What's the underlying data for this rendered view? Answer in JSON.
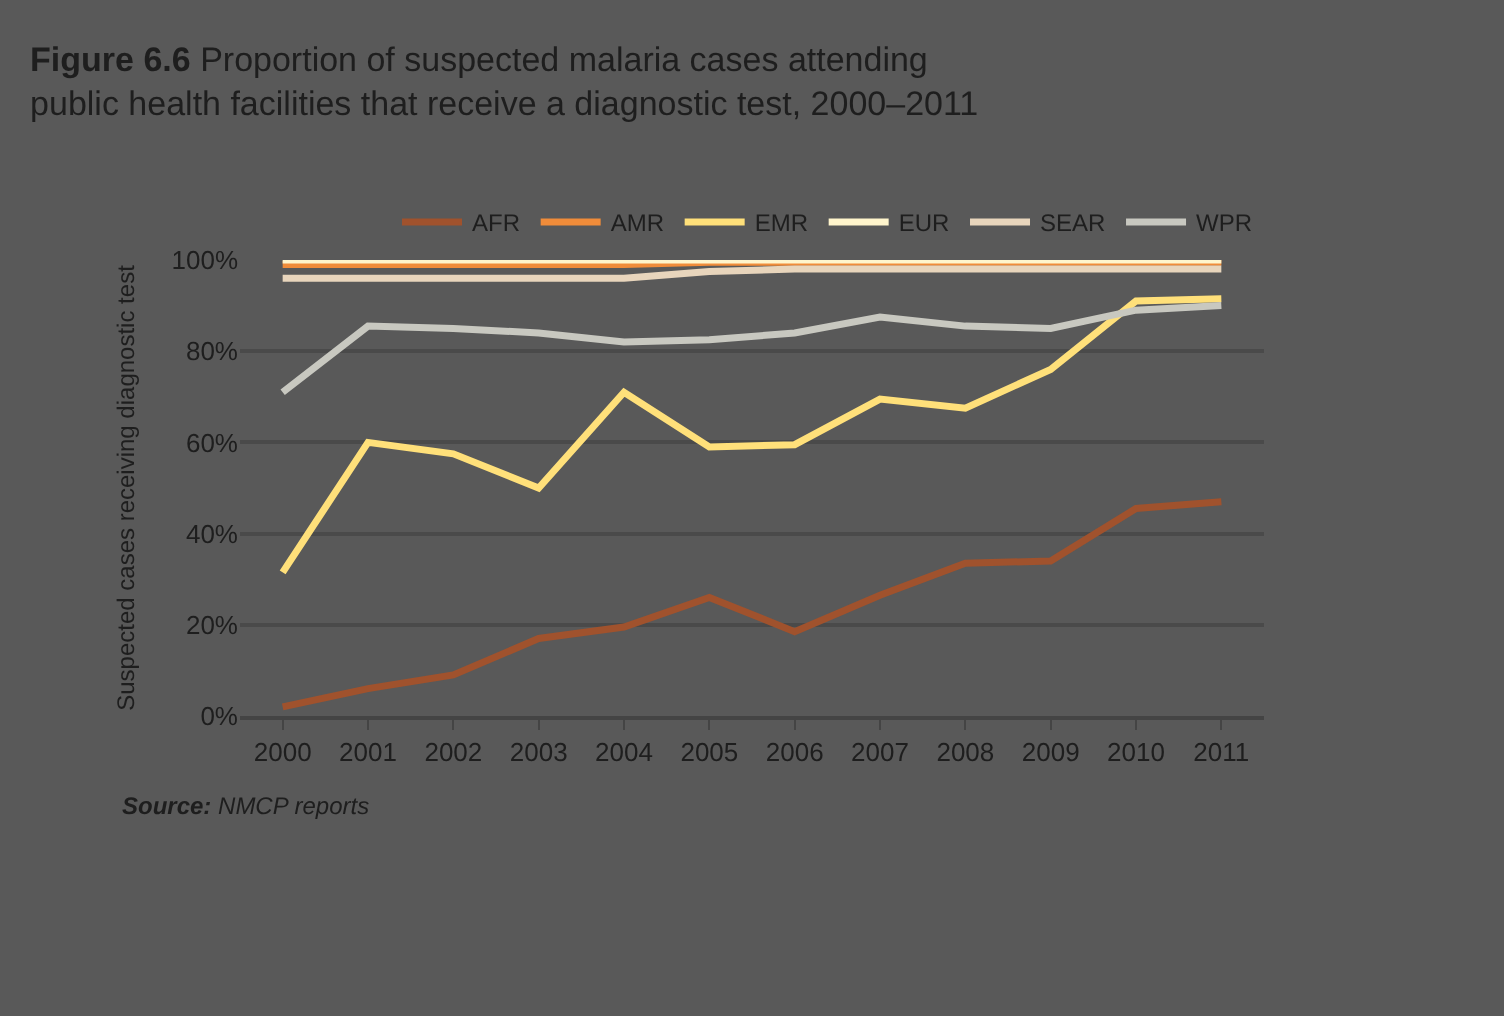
{
  "chart_data": {
    "type": "line",
    "title": "Figure 6.6 Proportion of suspected malaria cases attending public health facilities that receive a diagnostic test, 2000–2011",
    "ylabel": "Suspected cases receiving diagnostic test",
    "categories": [
      "2000",
      "2001",
      "2002",
      "2003",
      "2004",
      "2005",
      "2006",
      "2007",
      "2008",
      "2009",
      "2010",
      "2011"
    ],
    "series": [
      {
        "name": "AFR",
        "color": "#a0522d",
        "values": [
          2,
          6,
          9,
          17,
          19.5,
          26,
          18.5,
          26.5,
          33.5,
          34,
          45.5,
          47
        ]
      },
      {
        "name": "AMR",
        "color": "#f08c3a",
        "values": [
          99,
          99,
          99,
          99,
          99,
          99.5,
          99.5,
          99.5,
          99.5,
          99.5,
          99.5,
          99.5
        ]
      },
      {
        "name": "EMR",
        "color": "#ffe07a",
        "values": [
          31.5,
          60,
          57.5,
          50,
          71,
          59,
          59.5,
          69.5,
          67.5,
          76,
          91,
          91.5
        ]
      },
      {
        "name": "EUR",
        "color": "#fff5cc",
        "values": [
          100,
          100,
          100,
          100,
          100,
          100,
          100,
          100,
          100,
          100,
          100,
          100
        ]
      },
      {
        "name": "SEAR",
        "color": "#e8d5bc",
        "values": [
          96,
          96,
          96,
          96,
          96,
          97.5,
          98,
          98,
          98,
          98,
          98,
          98
        ]
      },
      {
        "name": "WPR",
        "color": "#c8c8c0",
        "values": [
          71,
          85.5,
          85,
          84,
          82,
          82.5,
          84,
          87.5,
          85.5,
          85,
          89,
          90
        ]
      }
    ],
    "ylim": [
      0,
      100
    ],
    "yticks": [
      {
        "value": 0,
        "label": "0%"
      },
      {
        "value": 20,
        "label": "20%"
      },
      {
        "value": 40,
        "label": "40%"
      },
      {
        "value": 60,
        "label": "60%"
      },
      {
        "value": 80,
        "label": "80%"
      },
      {
        "value": 100,
        "label": "100%"
      }
    ],
    "grid": "y",
    "legend": "top right",
    "marker": "none",
    "line_style": "solid",
    "annotations": [
      "Source: NMCP reports"
    ]
  }
}
